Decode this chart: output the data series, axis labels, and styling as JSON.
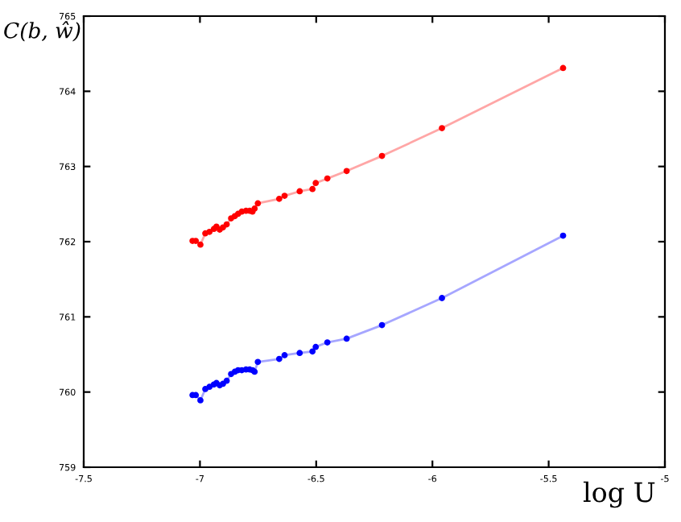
{
  "chart_data": {
    "type": "line",
    "xlabel": "log U",
    "ylabel": "C(b, ŵ)",
    "x": [
      -7.032,
      -7.018,
      -6.998,
      -6.977,
      -6.959,
      -6.94,
      -6.929,
      -6.915,
      -6.901,
      -6.885,
      -6.866,
      -6.85,
      -6.836,
      -6.82,
      -6.802,
      -6.786,
      -6.774,
      -6.765,
      -6.751,
      -6.659,
      -6.636,
      -6.571,
      -6.516,
      -6.502,
      -6.452,
      -6.369,
      -6.217,
      -5.959,
      -5.438
    ],
    "series": [
      {
        "color": "#ff0000",
        "values": [
          762.01,
          762.01,
          761.96,
          762.11,
          762.13,
          762.17,
          762.2,
          762.16,
          762.19,
          762.23,
          762.31,
          762.34,
          762.37,
          762.4,
          762.41,
          762.41,
          762.4,
          762.44,
          762.51,
          762.57,
          762.61,
          762.67,
          762.7,
          762.78,
          762.84,
          762.94,
          763.14,
          763.51,
          764.31
        ]
      },
      {
        "color": "#0000ff",
        "values": [
          759.96,
          759.96,
          759.89,
          760.04,
          760.07,
          760.1,
          760.12,
          760.09,
          760.11,
          760.15,
          760.24,
          760.27,
          760.29,
          760.29,
          760.3,
          760.3,
          760.29,
          760.27,
          760.4,
          760.44,
          760.49,
          760.52,
          760.54,
          760.6,
          760.66,
          760.71,
          760.89,
          761.25,
          762.08
        ]
      }
    ],
    "xlim": [
      -7.5,
      -5
    ],
    "xticks": [
      -7.5,
      -7,
      -6.5,
      -6,
      -5.5,
      -5
    ],
    "ylim": [
      759,
      765
    ],
    "yticks": [
      759,
      760,
      761,
      762,
      763,
      764,
      765
    ],
    "grid": false,
    "legend": false,
    "marker": "circle",
    "line_style": "solid"
  }
}
